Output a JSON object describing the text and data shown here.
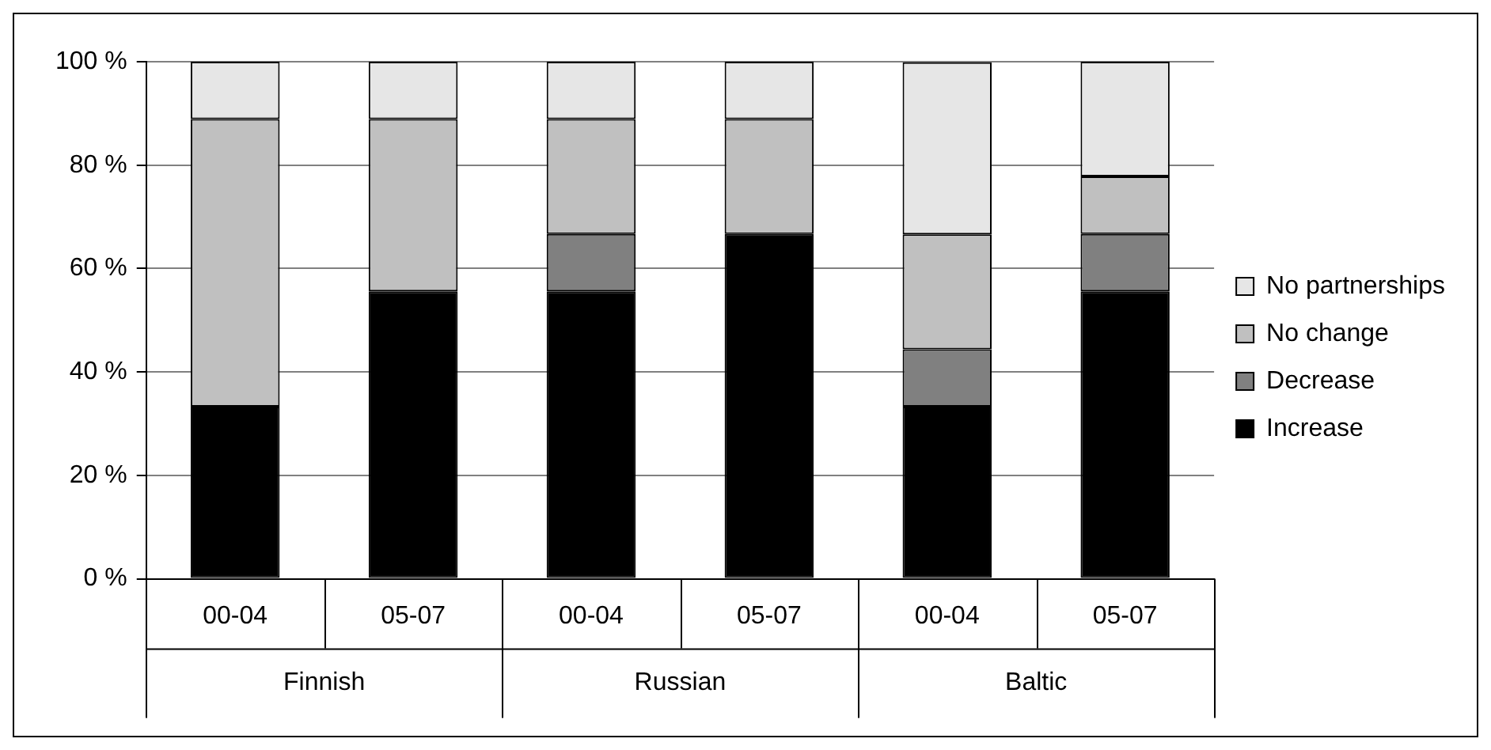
{
  "chart_data": {
    "type": "bar",
    "stacked": true,
    "categories": [
      "00-04",
      "05-07",
      "00-04",
      "05-07",
      "00-04",
      "05-07"
    ],
    "annotations": [
      "Finnish",
      "Russian",
      "Baltic"
    ],
    "series": [
      {
        "name": "Increase",
        "color": "#000000",
        "values": [
          33.3,
          55.6,
          55.6,
          66.7,
          33.3,
          55.6
        ]
      },
      {
        "name": "Decrease",
        "color": "#808080",
        "values": [
          0,
          0,
          11.1,
          0,
          11.1,
          11.1
        ]
      },
      {
        "name": "No change",
        "color": "#c0c0c0",
        "values": [
          55.6,
          33.3,
          22.2,
          22.2,
          22.2,
          11.1
        ]
      },
      {
        "name": "No partnerships",
        "color": "#e6e6e6",
        "values": [
          11.1,
          11.1,
          11.1,
          11.1,
          33.3,
          22.2
        ]
      }
    ],
    "ylim": [
      0,
      100
    ],
    "yticks": [
      {
        "value": 0,
        "label": "0 %"
      },
      {
        "value": 20,
        "label": "20 %"
      },
      {
        "value": 40,
        "label": "40 %"
      },
      {
        "value": 60,
        "label": "60 %"
      },
      {
        "value": 80,
        "label": "80 %"
      },
      {
        "value": 100,
        "label": "100 %"
      }
    ],
    "grid": "y",
    "legend": "right"
  }
}
